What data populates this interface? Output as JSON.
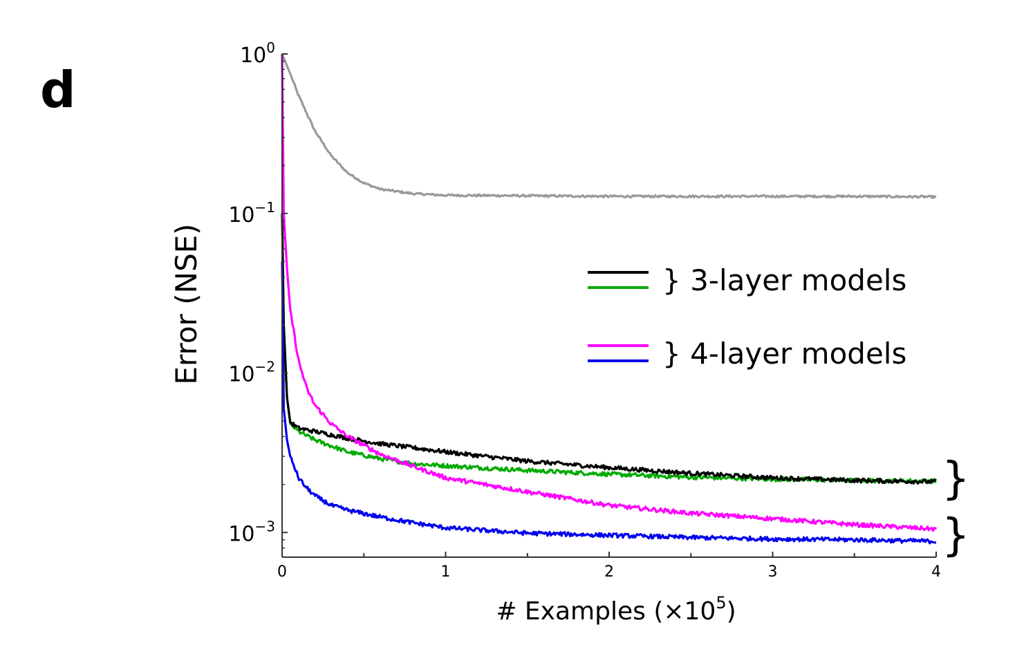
{
  "panel_label": "d",
  "chart_data": {
    "type": "line",
    "title": "",
    "xlabel": "# Examples (×10",
    "xlabel_sup": "5",
    "xlabel_end": ")",
    "ylabel": "Error (NSE)",
    "xlim": [
      0,
      4
    ],
    "ylim": [
      0.0007,
      1.0
    ],
    "yscale": "log",
    "grid": false,
    "x_ticks": [
      0,
      1,
      2,
      3,
      4
    ],
    "x_tick_labels": [
      "0",
      "1",
      "2",
      "3",
      "4"
    ],
    "y_ticks": [
      {
        "value": 1,
        "base": "10",
        "exp": "0"
      },
      {
        "value": 0.1,
        "base": "10",
        "exp": "−1"
      },
      {
        "value": 0.01,
        "base": "10",
        "exp": "−2"
      },
      {
        "value": 0.001,
        "base": "10",
        "exp": "−3"
      }
    ],
    "series": [
      {
        "color": "#999999",
        "x": [
          0,
          0.05,
          0.1,
          0.2,
          0.3,
          0.4,
          0.5,
          0.6,
          0.8,
          1.0,
          1.5,
          2.0,
          2.5,
          3.0,
          3.5,
          4.0
        ],
        "values": [
          1.0,
          0.75,
          0.55,
          0.33,
          0.23,
          0.18,
          0.155,
          0.142,
          0.133,
          0.13,
          0.129,
          0.128,
          0.128,
          0.128,
          0.128,
          0.127
        ],
        "noise": 0.015
      },
      {
        "color": "#00aa00",
        "x": [
          0,
          0.01,
          0.03,
          0.05,
          0.1,
          0.2,
          0.4,
          0.6,
          0.8,
          1.0,
          1.5,
          2.0,
          2.5,
          3.0,
          3.5,
          4.0
        ],
        "values": [
          0.1,
          0.02,
          0.007,
          0.0048,
          0.0043,
          0.0038,
          0.0032,
          0.0029,
          0.0027,
          0.00262,
          0.00245,
          0.00232,
          0.00222,
          0.00216,
          0.00212,
          0.0021
        ],
        "noise": 0.03
      },
      {
        "color": "#000000",
        "x": [
          0,
          0.01,
          0.03,
          0.05,
          0.1,
          0.2,
          0.4,
          0.6,
          0.8,
          1.0,
          1.5,
          2.0,
          2.5,
          3.0,
          3.5,
          4.0
        ],
        "values": [
          0.1,
          0.02,
          0.007,
          0.0049,
          0.0045,
          0.0043,
          0.0039,
          0.0036,
          0.0034,
          0.0032,
          0.0028,
          0.00255,
          0.00235,
          0.0022,
          0.00212,
          0.00208
        ],
        "noise": 0.03
      },
      {
        "color": "#ff00ff",
        "x": [
          0,
          0.01,
          0.03,
          0.05,
          0.08,
          0.1,
          0.15,
          0.2,
          0.3,
          0.4,
          0.6,
          0.8,
          1.0,
          1.5,
          2.0,
          2.5,
          3.0,
          3.5,
          4.0
        ],
        "values": [
          1.0,
          0.1,
          0.045,
          0.025,
          0.016,
          0.012,
          0.008,
          0.0063,
          0.0048,
          0.004,
          0.0031,
          0.0026,
          0.0022,
          0.0018,
          0.00148,
          0.00132,
          0.00122,
          0.00112,
          0.00105
        ],
        "noise": 0.03
      },
      {
        "color": "#0000ee",
        "x": [
          0,
          0.01,
          0.03,
          0.05,
          0.08,
          0.1,
          0.15,
          0.2,
          0.3,
          0.4,
          0.6,
          0.8,
          1.0,
          1.5,
          2.0,
          2.5,
          3.0,
          3.5,
          4.0
        ],
        "values": [
          0.05,
          0.006,
          0.0038,
          0.003,
          0.0025,
          0.0022,
          0.0019,
          0.0017,
          0.00148,
          0.00138,
          0.00125,
          0.00115,
          0.00107,
          0.00099,
          0.00096,
          0.00093,
          0.00091,
          0.0009,
          0.00088
        ],
        "noise": 0.03
      }
    ],
    "legend": {
      "placement": "right",
      "entries": [
        {
          "label": "} 3-layer models",
          "colors": [
            "#000000",
            "#00aa00"
          ]
        },
        {
          "label": "} 4-layer models",
          "colors": [
            "#ff00ff",
            "#0000ee"
          ]
        }
      ]
    },
    "annotations": [
      "}",
      "}"
    ]
  }
}
